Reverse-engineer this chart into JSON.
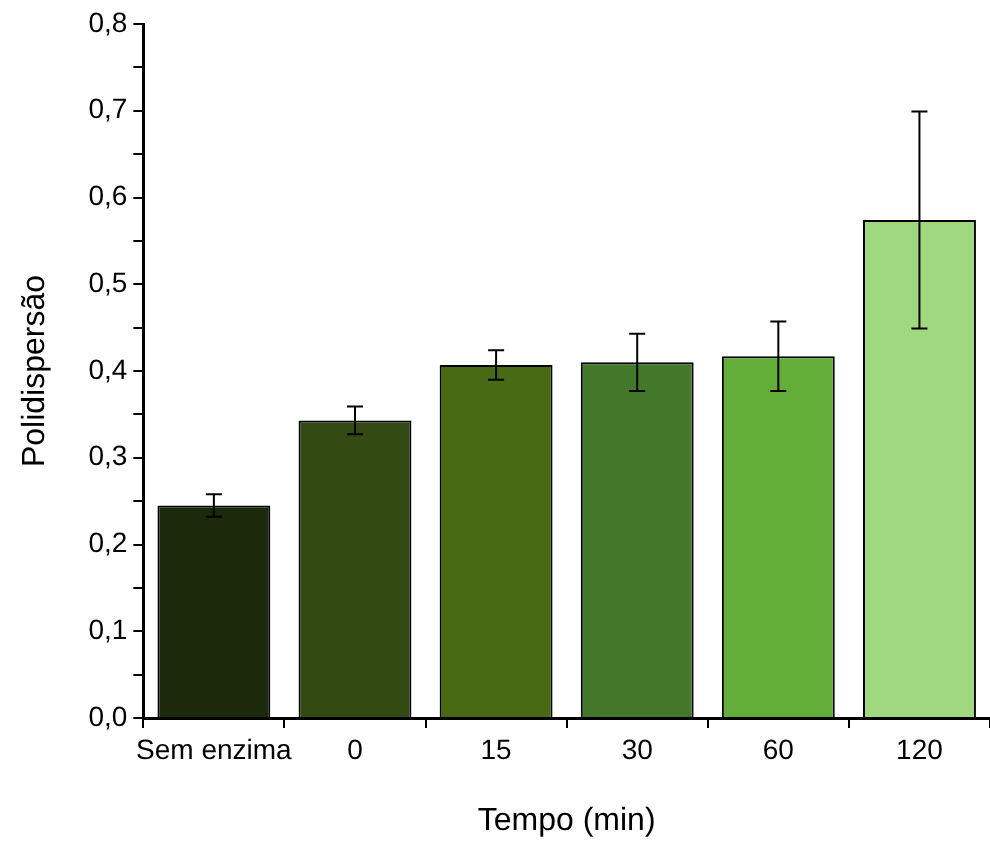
{
  "chart_data": {
    "type": "bar",
    "xlabel": "Tempo (min)",
    "ylabel": "Polidispersão",
    "categories": [
      "Sem enzima",
      "0",
      "15",
      "30",
      "60",
      "120"
    ],
    "values": [
      0.245,
      0.343,
      0.407,
      0.41,
      0.417,
      0.574
    ],
    "errors": [
      0.013,
      0.016,
      0.017,
      0.033,
      0.04,
      0.125
    ],
    "colors": [
      "#1c2a0c",
      "#334b12",
      "#496a14",
      "#43782a",
      "#62ae38",
      "#a0d880"
    ],
    "ylim": [
      0,
      0.8
    ],
    "yticks": [
      {
        "value": 0,
        "label": "0,0"
      },
      {
        "value": 0.05,
        "label": null
      },
      {
        "value": 0.1,
        "label": "0,1"
      },
      {
        "value": 0.15,
        "label": null
      },
      {
        "value": 0.2,
        "label": "0,2"
      },
      {
        "value": 0.25,
        "label": null
      },
      {
        "value": 0.3,
        "label": "0,3"
      },
      {
        "value": 0.35,
        "label": null
      },
      {
        "value": 0.4,
        "label": "0,4"
      },
      {
        "value": 0.45,
        "label": null
      },
      {
        "value": 0.5,
        "label": "0,5"
      },
      {
        "value": 0.55,
        "label": null
      },
      {
        "value": 0.6,
        "label": "0,6"
      },
      {
        "value": 0.65,
        "label": null
      },
      {
        "value": 0.7,
        "label": "0,7"
      },
      {
        "value": 0.75,
        "label": null
      },
      {
        "value": 0.8,
        "label": "0,8"
      }
    ],
    "grid": false,
    "legend": false
  }
}
